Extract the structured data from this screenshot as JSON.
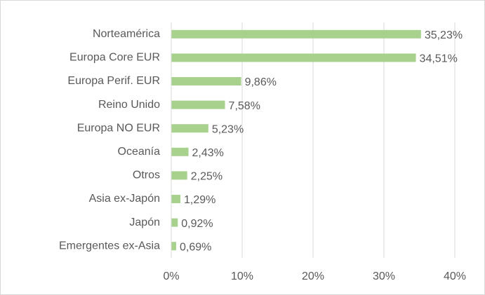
{
  "chart_data": {
    "type": "bar",
    "orientation": "horizontal",
    "categories": [
      "Norteamérica",
      "Europa Core EUR",
      "Europa Perif. EUR",
      "Reino Unido",
      "Europa NO EUR",
      "Oceanía",
      "Otros",
      "Asia ex-Japón",
      "Japón",
      "Emergentes ex-Asia"
    ],
    "values": [
      35.23,
      34.51,
      9.86,
      7.58,
      5.23,
      2.43,
      2.25,
      1.29,
      0.92,
      0.69
    ],
    "value_labels": [
      "35,23%",
      "34,51%",
      "9,86%",
      "7,58%",
      "5,23%",
      "2,43%",
      "2,25%",
      "1,29%",
      "0,92%",
      "0,69%"
    ],
    "color": "#a9d18e",
    "xlim": [
      0,
      40
    ],
    "xticks": [
      {
        "value": 0,
        "label": "0%"
      },
      {
        "value": 10,
        "label": "10%"
      },
      {
        "value": 20,
        "label": "20%"
      },
      {
        "value": 30,
        "label": "30%"
      },
      {
        "value": 40,
        "label": "40%"
      }
    ],
    "grid": true
  }
}
